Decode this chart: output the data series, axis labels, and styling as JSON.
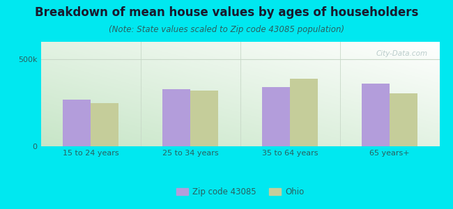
{
  "title": "Breakdown of mean house values by ages of householders",
  "subtitle": "(Note: State values scaled to Zip code 43085 population)",
  "categories": [
    "15 to 24 years",
    "25 to 34 years",
    "35 to 64 years",
    "65 years+"
  ],
  "zip_values": [
    270000,
    330000,
    340000,
    360000
  ],
  "ohio_values": [
    250000,
    320000,
    390000,
    305000
  ],
  "zip_color": "#b39ddb",
  "ohio_color": "#c5cd9a",
  "background_outer": "#00e8f0",
  "ylim": [
    0,
    600000
  ],
  "ytick_labels": [
    "0",
    "500k"
  ],
  "ytick_vals": [
    0,
    500000
  ],
  "legend_labels": [
    "Zip code 43085",
    "Ohio"
  ],
  "bar_width": 0.28,
  "title_fontsize": 12,
  "subtitle_fontsize": 8.5,
  "tick_fontsize": 8,
  "watermark": "City-Data.com",
  "title_color": "#1a1a2e",
  "subtitle_color": "#2a6060",
  "tick_color": "#2a6060",
  "legend_color": "#2a6060",
  "grad_top": "#ffffff",
  "grad_bottom_left": "#c8e6c8",
  "hline_color": "#c8d8c8"
}
